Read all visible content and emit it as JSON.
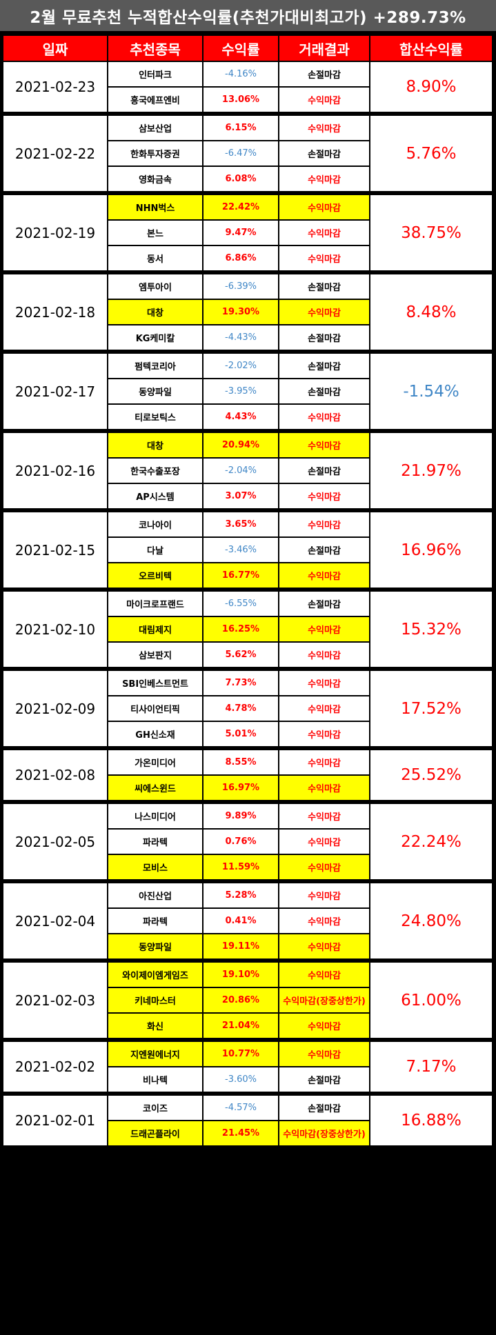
{
  "title": "2월 무료추천 누적합산수익률(추천가대비최고가) +289.73%",
  "headers": [
    "일짜",
    "추천종목",
    "수익률",
    "거래결과",
    "합산수익률"
  ],
  "groups": [
    {
      "date": "2021-02-23",
      "total": "8.90%",
      "rows": [
        {
          "stock": "인터파크",
          "rate": "-4.16%",
          "result": "손절마감"
        },
        {
          "stock": "흥국에프엔비",
          "rate": "13.06%",
          "result": "수익마감"
        }
      ]
    },
    {
      "date": "2021-02-22",
      "total": "5.76%",
      "rows": [
        {
          "stock": "삼보산업",
          "rate": "6.15%",
          "result": "수익마감"
        },
        {
          "stock": "한화투자증권",
          "rate": "-6.47%",
          "result": "손절마감"
        },
        {
          "stock": "영화금속",
          "rate": "6.08%",
          "result": "수익마감"
        }
      ]
    },
    {
      "date": "2021-02-19",
      "total": "38.75%",
      "rows": [
        {
          "stock": "NHN벅스",
          "rate": "22.42%",
          "result": "수익마감",
          "highlight": true
        },
        {
          "stock": "본느",
          "rate": "9.47%",
          "result": "수익마감"
        },
        {
          "stock": "동서",
          "rate": "6.86%",
          "result": "수익마감"
        }
      ]
    },
    {
      "date": "2021-02-18",
      "total": "8.48%",
      "rows": [
        {
          "stock": "엠투아이",
          "rate": "-6.39%",
          "result": "손절마감"
        },
        {
          "stock": "대창",
          "rate": "19.30%",
          "result": "수익마감",
          "highlight": true
        },
        {
          "stock": "KG케미칼",
          "rate": "-4.43%",
          "result": "손절마감"
        }
      ]
    },
    {
      "date": "2021-02-17",
      "total": "-1.54%",
      "rows": [
        {
          "stock": "펌텍코리아",
          "rate": "-2.02%",
          "result": "손절마감"
        },
        {
          "stock": "동양파일",
          "rate": "-3.95%",
          "result": "손절마감"
        },
        {
          "stock": "티로보틱스",
          "rate": "4.43%",
          "result": "수익마감"
        }
      ]
    },
    {
      "date": "2021-02-16",
      "total": "21.97%",
      "rows": [
        {
          "stock": "대창",
          "rate": "20.94%",
          "result": "수익마감",
          "highlight": true
        },
        {
          "stock": "한국수출포장",
          "rate": "-2.04%",
          "result": "손절마감"
        },
        {
          "stock": "AP시스템",
          "rate": "3.07%",
          "result": "수익마감"
        }
      ]
    },
    {
      "date": "2021-02-15",
      "total": "16.96%",
      "rows": [
        {
          "stock": "코나아이",
          "rate": "3.65%",
          "result": "수익마감"
        },
        {
          "stock": "다날",
          "rate": "-3.46%",
          "result": "손절마감"
        },
        {
          "stock": "오르비텍",
          "rate": "16.77%",
          "result": "수익마감",
          "highlight": true
        }
      ]
    },
    {
      "date": "2021-02-10",
      "total": "15.32%",
      "rows": [
        {
          "stock": "마이크로프랜드",
          "rate": "-6.55%",
          "result": "손절마감"
        },
        {
          "stock": "대림제지",
          "rate": "16.25%",
          "result": "수익마감",
          "highlight": true
        },
        {
          "stock": "삼보판지",
          "rate": "5.62%",
          "result": "수익마감"
        }
      ]
    },
    {
      "date": "2021-02-09",
      "total": "17.52%",
      "rows": [
        {
          "stock": "SBI인베스트먼트",
          "rate": "7.73%",
          "result": "수익마감"
        },
        {
          "stock": "티사이언티픽",
          "rate": "4.78%",
          "result": "수익마감"
        },
        {
          "stock": "GH신소재",
          "rate": "5.01%",
          "result": "수익마감"
        }
      ]
    },
    {
      "date": "2021-02-08",
      "total": "25.52%",
      "rows": [
        {
          "stock": "가온미디어",
          "rate": "8.55%",
          "result": "수익마감"
        },
        {
          "stock": "씨에스윈드",
          "rate": "16.97%",
          "result": "수익마감",
          "highlight": true
        }
      ]
    },
    {
      "date": "2021-02-05",
      "total": "22.24%",
      "rows": [
        {
          "stock": "나스미디어",
          "rate": "9.89%",
          "result": "수익마감"
        },
        {
          "stock": "파라텍",
          "rate": "0.76%",
          "result": "수익마감"
        },
        {
          "stock": "모비스",
          "rate": "11.59%",
          "result": "수익마감",
          "highlight": true
        }
      ]
    },
    {
      "date": "2021-02-04",
      "total": "24.80%",
      "rows": [
        {
          "stock": "아진산업",
          "rate": "5.28%",
          "result": "수익마감"
        },
        {
          "stock": "파라텍",
          "rate": "0.41%",
          "result": "수익마감"
        },
        {
          "stock": "동양파일",
          "rate": "19.11%",
          "result": "수익마감",
          "highlight": true
        }
      ]
    },
    {
      "date": "2021-02-03",
      "total": "61.00%",
      "rows": [
        {
          "stock": "와이제이엠게임즈",
          "rate": "19.10%",
          "result": "수익마감",
          "highlight": true
        },
        {
          "stock": "키네마스터",
          "rate": "20.86%",
          "result": "수익마감(장중상한가)",
          "highlight": true
        },
        {
          "stock": "화신",
          "rate": "21.04%",
          "result": "수익마감",
          "highlight": true
        }
      ]
    },
    {
      "date": "2021-02-02",
      "total": "7.17%",
      "rows": [
        {
          "stock": "지엔원에너지",
          "rate": "10.77%",
          "result": "수익마감",
          "highlight": true
        },
        {
          "stock": "비나텍",
          "rate": "-3.60%",
          "result": "손절마감"
        }
      ]
    },
    {
      "date": "2021-02-01",
      "total": "16.88%",
      "rows": [
        {
          "stock": "코이즈",
          "rate": "-4.57%",
          "result": "손절마감"
        },
        {
          "stock": "드래곤플라이",
          "rate": "21.45%",
          "result": "수익마감(장중상한가)",
          "highlight": true
        }
      ]
    }
  ],
  "colors": {
    "positive": "#ff0000",
    "negative": "#3f86c6",
    "highlight": "#ffff00",
    "header": "#ff0000",
    "banner": "#595959"
  }
}
